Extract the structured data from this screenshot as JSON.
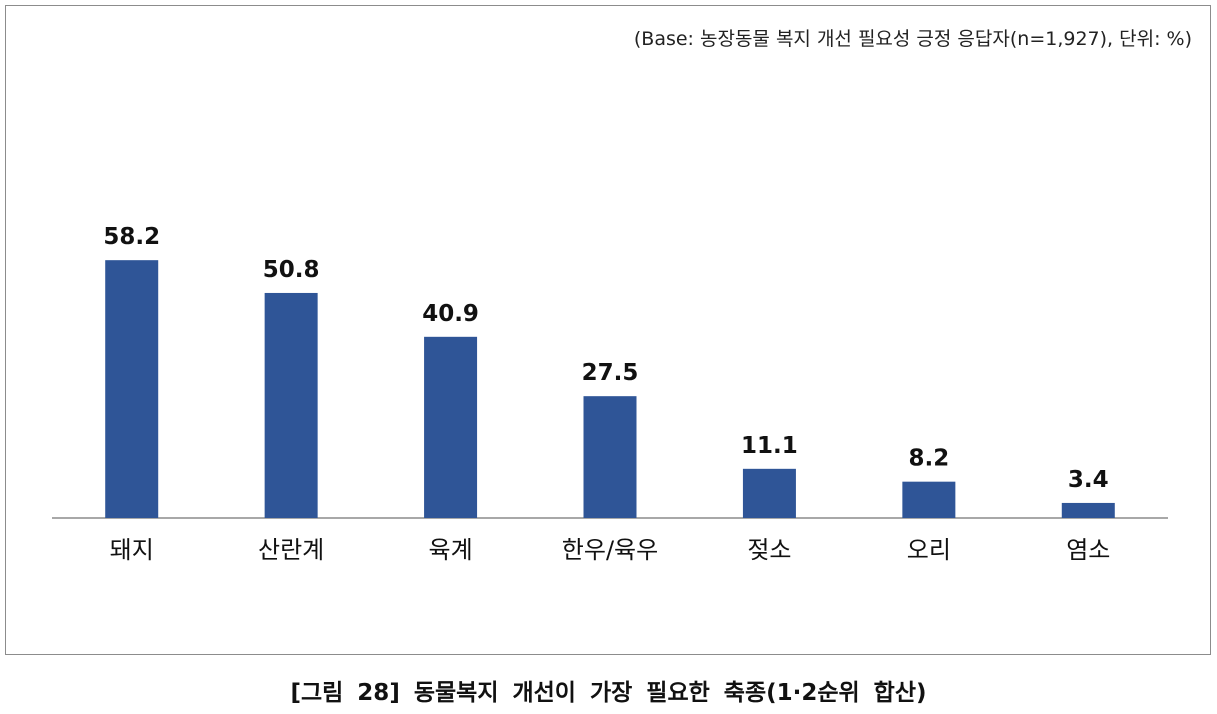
{
  "note": "(Base: 농장동물 복지 개선 필요성 긍정 응답자(n=1,927), 단위: %)",
  "caption": "[그림 28] 동물복지 개선이 가장 필요한 축종(1·2순위 합산)",
  "chart_data": {
    "type": "bar",
    "categories": [
      "돼지",
      "산란계",
      "육계",
      "한우/육우",
      "젖소",
      "오리",
      "염소"
    ],
    "values": [
      58.2,
      50.8,
      40.9,
      27.5,
      11.1,
      8.2,
      3.4
    ],
    "value_labels": [
      "58.2",
      "50.8",
      "40.9",
      "27.5",
      "11.1",
      "8.2",
      "3.4"
    ],
    "ylim": [
      0,
      100
    ],
    "grid": false,
    "bar_color": "#2F5597",
    "axis_color": "#8c8c8c"
  }
}
